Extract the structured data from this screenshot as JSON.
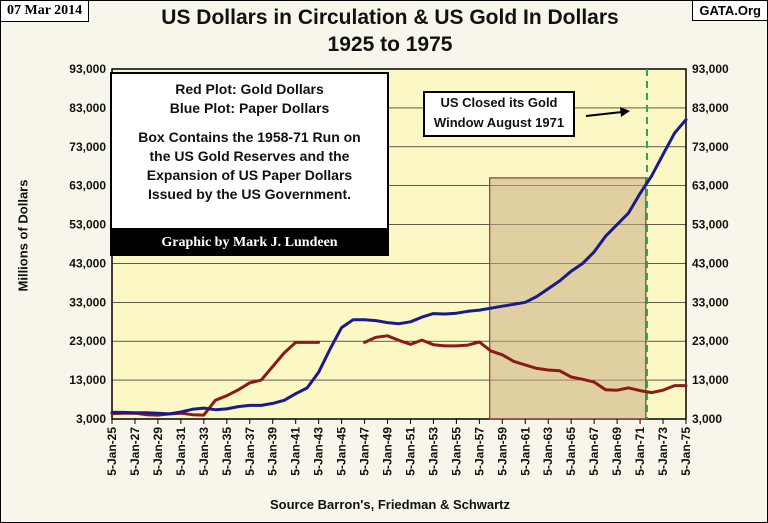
{
  "header": {
    "date": "07 Mar 2014",
    "site": "GATA.Org",
    "title_line1": "US Dollars in Circulation & US Gold In Dollars",
    "title_line2": "1925 to 1975"
  },
  "legend": {
    "line1": "Red Plot: Gold Dollars",
    "line2": "Blue Plot: Paper Dollars",
    "line3": "Box Contains the 1958-71 Run on",
    "line4": "the US Gold Reserves and the",
    "line5": "Expansion of US Paper Dollars",
    "line6": "Issued by the US Government.",
    "credit": "Graphic by Mark J. Lundeen"
  },
  "annotation": {
    "line1": "US Closed its Gold",
    "line2": "Window August 1971",
    "event_year": 1971.6
  },
  "chart_data": {
    "type": "line",
    "title": "US Dollars in Circulation & US Gold In Dollars 1925 to 1975",
    "ylabel": "Millions of Dollars",
    "xlabel": "Source Barron's, Friedman & Schwartz",
    "ylim": [
      3000,
      93000
    ],
    "xlim": [
      1925,
      1975
    ],
    "y_ticks": [
      "3,000",
      "13,000",
      "23,000",
      "33,000",
      "43,000",
      "53,000",
      "63,000",
      "73,000",
      "83,000",
      "93,000"
    ],
    "y_tick_values": [
      3000,
      13000,
      23000,
      33000,
      43000,
      53000,
      63000,
      73000,
      83000,
      93000
    ],
    "x_ticks": [
      "5-Jan-25",
      "5-Jan-27",
      "5-Jan-29",
      "5-Jan-31",
      "5-Jan-33",
      "5-Jan-35",
      "5-Jan-37",
      "5-Jan-39",
      "5-Jan-41",
      "5-Jan-43",
      "5-Jan-45",
      "5-Jan-47",
      "5-Jan-49",
      "5-Jan-51",
      "5-Jan-53",
      "5-Jan-55",
      "5-Jan-57",
      "5-Jan-59",
      "5-Jan-61",
      "5-Jan-63",
      "5-Jan-65",
      "5-Jan-67",
      "5-Jan-69",
      "5-Jan-71",
      "5-Jan-73",
      "5-Jan-75"
    ],
    "x_tick_years": [
      1925,
      1927,
      1929,
      1931,
      1933,
      1935,
      1937,
      1939,
      1941,
      1943,
      1945,
      1947,
      1949,
      1951,
      1953,
      1955,
      1957,
      1959,
      1961,
      1963,
      1965,
      1967,
      1969,
      1971,
      1973,
      1975
    ],
    "highlight_box": {
      "x_start": 1957.9,
      "x_end": 1971.5,
      "y_low": 3000,
      "y_high": 65000
    },
    "series": [
      {
        "name": "Gold Dollars",
        "color": "#8b1a1a",
        "points": [
          [
            [
              1925,
              4400
            ],
            [
              1926,
              4500
            ],
            [
              1927,
              4500
            ],
            [
              1928,
              4100
            ],
            [
              1929,
              4000
            ],
            [
              1930,
              4300
            ],
            [
              1931,
              4500
            ],
            [
              1932,
              4100
            ],
            [
              1933,
              4000
            ],
            [
              1934,
              7800
            ],
            [
              1935,
              9000
            ],
            [
              1936,
              10500
            ],
            [
              1937,
              12300
            ],
            [
              1938,
              13000
            ],
            [
              1939,
              16500
            ],
            [
              1940,
              20000
            ],
            [
              1941,
              22700
            ],
            [
              1942,
              22700
            ],
            [
              1943,
              22700
            ]
          ],
          [
            [
              1947,
              22700
            ],
            [
              1948,
              24000
            ],
            [
              1949,
              24400
            ],
            [
              1950,
              23200
            ],
            [
              1951,
              22200
            ],
            [
              1952,
              23300
            ],
            [
              1953,
              22100
            ],
            [
              1954,
              21800
            ],
            [
              1955,
              21800
            ],
            [
              1956,
              22000
            ],
            [
              1957,
              22800
            ],
            [
              1958,
              20500
            ],
            [
              1959,
              19500
            ],
            [
              1960,
              17800
            ],
            [
              1961,
              16900
            ],
            [
              1962,
              16000
            ],
            [
              1963,
              15600
            ],
            [
              1964,
              15400
            ],
            [
              1965,
              13800
            ],
            [
              1966,
              13200
            ],
            [
              1967,
              12500
            ],
            [
              1968,
              10500
            ],
            [
              1969,
              10400
            ],
            [
              1970,
              11000
            ],
            [
              1971,
              10300
            ],
            [
              1972,
              9800
            ],
            [
              1973,
              10400
            ],
            [
              1974,
              11600
            ],
            [
              1975,
              11600
            ]
          ]
        ]
      },
      {
        "name": "Paper Dollars",
        "color": "#1a1a8c",
        "points": [
          [
            [
              1925,
              4700
            ],
            [
              1926,
              4700
            ],
            [
              1927,
              4600
            ],
            [
              1928,
              4600
            ],
            [
              1929,
              4500
            ],
            [
              1930,
              4300
            ],
            [
              1931,
              4800
            ],
            [
              1932,
              5500
            ],
            [
              1933,
              5800
            ],
            [
              1934,
              5400
            ],
            [
              1935,
              5600
            ],
            [
              1936,
              6200
            ],
            [
              1937,
              6500
            ],
            [
              1938,
              6500
            ],
            [
              1939,
              7000
            ],
            [
              1940,
              7800
            ],
            [
              1941,
              9500
            ],
            [
              1942,
              11000
            ],
            [
              1943,
              15000
            ],
            [
              1944,
              21000
            ],
            [
              1945,
              26500
            ],
            [
              1946,
              28500
            ],
            [
              1947,
              28500
            ],
            [
              1948,
              28300
            ],
            [
              1949,
              27800
            ],
            [
              1950,
              27500
            ],
            [
              1951,
              28000
            ],
            [
              1952,
              29200
            ],
            [
              1953,
              30100
            ],
            [
              1954,
              30000
            ],
            [
              1955,
              30200
            ],
            [
              1956,
              30700
            ],
            [
              1957,
              31000
            ],
            [
              1958,
              31500
            ],
            [
              1959,
              32000
            ],
            [
              1960,
              32500
            ],
            [
              1961,
              33000
            ],
            [
              1962,
              34500
            ],
            [
              1963,
              36500
            ],
            [
              1964,
              38500
            ],
            [
              1965,
              41000
            ],
            [
              1966,
              43000
            ],
            [
              1967,
              46000
            ],
            [
              1968,
              50000
            ],
            [
              1969,
              53000
            ],
            [
              1970,
              56000
            ],
            [
              1971,
              61000
            ],
            [
              1972,
              65500
            ],
            [
              1973,
              71000
            ],
            [
              1974,
              76500
            ],
            [
              1975,
              80000
            ]
          ]
        ]
      }
    ]
  }
}
